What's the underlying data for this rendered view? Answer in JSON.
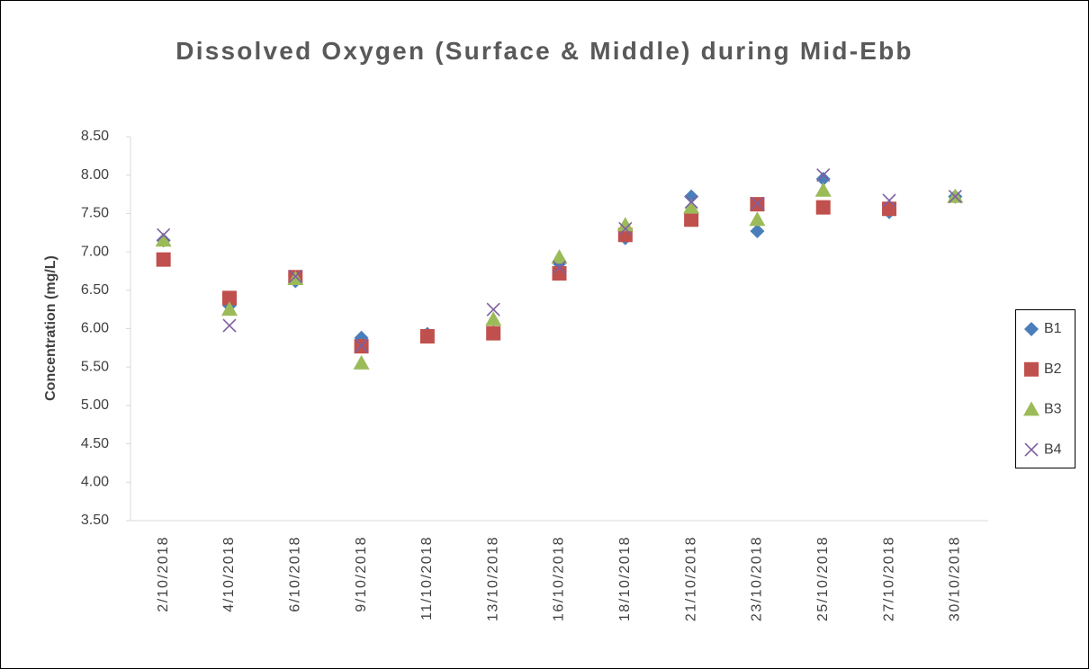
{
  "chart_data": {
    "type": "scatter",
    "title": "Dissolved Oxygen (Surface & Middle) during Mid-Ebb",
    "y_label": "Concentration (mg/L)",
    "categories": [
      "2/10/2018",
      "4/10/2018",
      "6/10/2018",
      "9/10/2018",
      "11/10/2018",
      "13/10/2018",
      "16/10/2018",
      "18/10/2018",
      "21/10/2018",
      "23/10/2018",
      "25/10/2018",
      "27/10/2018",
      "30/10/2018"
    ],
    "series": [
      {
        "name": "B1",
        "color": "#4a7ebb",
        "marker": "diamond",
        "values": [
          7.15,
          6.3,
          6.62,
          5.88,
          5.93,
          5.95,
          6.85,
          7.18,
          7.72,
          7.27,
          7.95,
          7.52,
          7.72
        ]
      },
      {
        "name": "B2",
        "color": "#c0504d",
        "marker": "square",
        "values": [
          6.9,
          6.4,
          6.67,
          5.77,
          5.9,
          5.94,
          6.72,
          7.22,
          7.42,
          7.62,
          7.58,
          7.56,
          null
        ]
      },
      {
        "name": "B3",
        "color": "#9bbb59",
        "marker": "triangle",
        "values": [
          7.15,
          6.25,
          6.65,
          5.55,
          null,
          6.12,
          6.93,
          7.35,
          7.58,
          7.42,
          7.8,
          null,
          7.72
        ]
      },
      {
        "name": "B4",
        "color": "#7f5fa0",
        "marker": "x",
        "values": [
          7.22,
          6.04,
          6.68,
          5.78,
          null,
          6.25,
          6.8,
          7.3,
          7.65,
          7.63,
          8.0,
          7.67,
          7.72
        ]
      }
    ],
    "ylim": [
      3.5,
      8.5
    ],
    "yticks": [
      {
        "value": 3.5,
        "label": "3.50"
      },
      {
        "value": 4,
        "label": "4.00"
      },
      {
        "value": 4.5,
        "label": "4.50"
      },
      {
        "value": 5,
        "label": "5.00"
      },
      {
        "value": 5.5,
        "label": "5.50"
      },
      {
        "value": 6,
        "label": "6.00"
      },
      {
        "value": 6.5,
        "label": "6.50"
      },
      {
        "value": 7,
        "label": "7.00"
      },
      {
        "value": 7.5,
        "label": "7.50"
      },
      {
        "value": 8,
        "label": "8.00"
      },
      {
        "value": 8.5,
        "label": "8.50"
      }
    ],
    "grid": false,
    "legend": "right"
  }
}
